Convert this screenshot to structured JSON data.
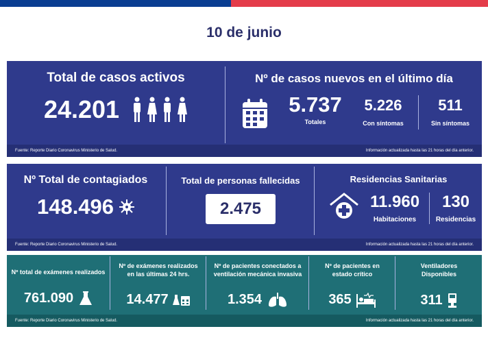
{
  "date": "10 de junio",
  "active": {
    "title": "Total de casos activos",
    "value": "24.201"
  },
  "new_cases": {
    "title": "Nº de casos nuevos en el último día",
    "total_value": "5.737",
    "total_label": "Totales",
    "symptoms_value": "5.226",
    "symptoms_label": "Con síntomas",
    "no_symptoms_value": "511",
    "no_symptoms_label": "Sin síntomas"
  },
  "source": "Fuente: Reporte Diario Coronavirus Ministerio de Salud.",
  "updated": "Información actualizada hasta las 21 horas  del día anterior.",
  "contagiados": {
    "title": "Nº Total de contagiados",
    "value": "148.496"
  },
  "fallecidos": {
    "title": "Total de personas fallecidas",
    "value": "2.475"
  },
  "residencias": {
    "title": "Residencias Sanitarias",
    "rooms_value": "11.960",
    "rooms_label": "Habitaciones",
    "res_value": "130",
    "res_label": "Residencias"
  },
  "tests_total": {
    "title": "Nº total de exámenes realizados",
    "value": "761.090"
  },
  "tests_24h": {
    "title": "Nº de exámenes realizados en las últimas 24 hrs.",
    "value": "14.477"
  },
  "ventilated": {
    "title": "Nº de pacientes conectados a ventilación mecánica invasiva",
    "value": "1.354"
  },
  "critical": {
    "title": "Nº de pacientes  en estado crítico",
    "value": "365"
  },
  "ventilators": {
    "title": "Ventiladores Disponibles",
    "value": "311"
  },
  "colors": {
    "panel_blue": "#2f3a8c",
    "panel_teal": "#1f6f76",
    "accent_red": "#e43c4a",
    "top_blue": "#0a3d91"
  }
}
